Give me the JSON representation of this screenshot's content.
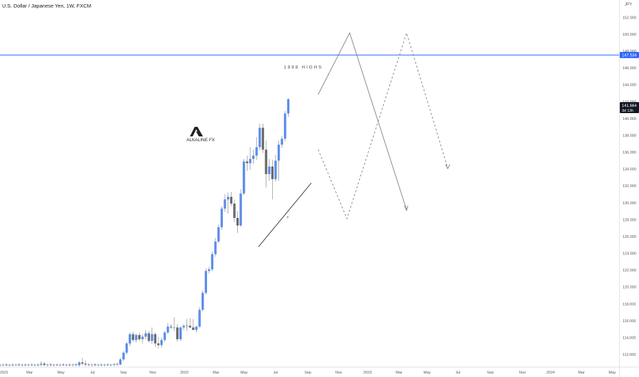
{
  "header": {
    "symbol_title": "U.S. Dollar / Japanese Yen, 1W, FXCM",
    "currency": "JPY"
  },
  "watermark": {
    "text": "ALKALINE FX"
  },
  "annotation": {
    "text": "1998 HIGHS"
  },
  "colors": {
    "up": "#5b8dec",
    "down": "#6a6a6a",
    "wick": "#888888",
    "hline": "#2962ff",
    "projection": "#7d7d7d",
    "axis_text": "#555555"
  },
  "chart_data": {
    "type": "candlestick",
    "ylim": [
      110.6,
      154.2
    ],
    "y_ticks": [
      112,
      114,
      116,
      118,
      120,
      122,
      124,
      126,
      128,
      130,
      132,
      134,
      136,
      138,
      140,
      142,
      144,
      146,
      148,
      150,
      152,
      154
    ],
    "x_ticks": [
      "2021",
      "Mar",
      "May",
      "Jul",
      "Sep",
      "Nov",
      "2022",
      "Mar",
      "May",
      "Jul",
      "Sep",
      "Nov",
      "2023",
      "Mar",
      "May",
      "Jul",
      "Sep",
      "Nov",
      "2024",
      "Mar",
      "May"
    ],
    "price_labels": {
      "level": 147.534,
      "last": 141.664,
      "countdown": "3d 13h"
    },
    "horizontal_line": 147.534,
    "candles": [
      {
        "o": 110.75,
        "h": 110.85,
        "l": 110.55,
        "c": 110.72
      },
      {
        "o": 110.72,
        "h": 110.9,
        "l": 110.6,
        "c": 110.78
      },
      {
        "o": 110.78,
        "h": 110.95,
        "l": 110.6,
        "c": 110.7
      },
      {
        "o": 110.7,
        "h": 110.85,
        "l": 110.55,
        "c": 110.76
      },
      {
        "o": 110.76,
        "h": 110.9,
        "l": 110.6,
        "c": 110.74
      },
      {
        "o": 110.74,
        "h": 110.88,
        "l": 110.58,
        "c": 110.8
      },
      {
        "o": 110.8,
        "h": 110.95,
        "l": 110.62,
        "c": 110.72
      },
      {
        "o": 110.72,
        "h": 110.86,
        "l": 110.56,
        "c": 110.78
      },
      {
        "o": 110.78,
        "h": 110.92,
        "l": 110.6,
        "c": 110.74
      },
      {
        "o": 110.74,
        "h": 110.88,
        "l": 110.58,
        "c": 110.79
      },
      {
        "o": 110.79,
        "h": 110.94,
        "l": 110.62,
        "c": 110.73
      },
      {
        "o": 110.73,
        "h": 110.87,
        "l": 110.57,
        "c": 110.77
      },
      {
        "o": 110.77,
        "h": 110.9,
        "l": 110.6,
        "c": 110.75
      },
      {
        "o": 110.75,
        "h": 111.2,
        "l": 110.6,
        "c": 110.9
      },
      {
        "o": 110.9,
        "h": 111.1,
        "l": 110.6,
        "c": 110.75
      },
      {
        "o": 110.75,
        "h": 110.9,
        "l": 110.55,
        "c": 110.8
      },
      {
        "o": 110.8,
        "h": 110.95,
        "l": 110.6,
        "c": 110.72
      },
      {
        "o": 110.72,
        "h": 110.86,
        "l": 110.56,
        "c": 110.78
      },
      {
        "o": 110.78,
        "h": 110.92,
        "l": 110.6,
        "c": 110.74
      },
      {
        "o": 110.74,
        "h": 110.88,
        "l": 110.58,
        "c": 110.79
      },
      {
        "o": 110.79,
        "h": 110.94,
        "l": 110.62,
        "c": 110.73
      },
      {
        "o": 110.73,
        "h": 110.87,
        "l": 110.57,
        "c": 110.77
      },
      {
        "o": 110.77,
        "h": 110.9,
        "l": 110.6,
        "c": 110.75
      },
      {
        "o": 110.75,
        "h": 110.9,
        "l": 110.55,
        "c": 110.8
      },
      {
        "o": 110.8,
        "h": 110.95,
        "l": 110.6,
        "c": 110.72
      },
      {
        "o": 110.72,
        "h": 111.2,
        "l": 110.56,
        "c": 111.05
      },
      {
        "o": 111.05,
        "h": 111.6,
        "l": 110.7,
        "c": 110.9
      },
      {
        "o": 110.9,
        "h": 111.3,
        "l": 110.6,
        "c": 110.8
      },
      {
        "o": 110.8,
        "h": 110.95,
        "l": 110.6,
        "c": 110.75
      },
      {
        "o": 110.75,
        "h": 110.9,
        "l": 110.55,
        "c": 110.8
      },
      {
        "o": 110.8,
        "h": 110.95,
        "l": 110.6,
        "c": 110.72
      },
      {
        "o": 110.72,
        "h": 110.86,
        "l": 110.56,
        "c": 110.78
      },
      {
        "o": 110.78,
        "h": 110.92,
        "l": 110.6,
        "c": 110.74
      },
      {
        "o": 110.74,
        "h": 110.88,
        "l": 110.58,
        "c": 110.79
      },
      {
        "o": 110.79,
        "h": 110.94,
        "l": 110.62,
        "c": 110.73
      },
      {
        "o": 110.73,
        "h": 110.87,
        "l": 110.57,
        "c": 110.77
      },
      {
        "o": 110.77,
        "h": 110.95,
        "l": 110.6,
        "c": 110.85
      },
      {
        "o": 110.85,
        "h": 111.0,
        "l": 110.65,
        "c": 110.8
      },
      {
        "o": 110.8,
        "h": 111.6,
        "l": 110.7,
        "c": 111.4
      },
      {
        "o": 111.4,
        "h": 112.4,
        "l": 111.2,
        "c": 112.2
      },
      {
        "o": 112.2,
        "h": 113.5,
        "l": 112.0,
        "c": 113.3
      },
      {
        "o": 113.3,
        "h": 114.6,
        "l": 113.0,
        "c": 114.4
      },
      {
        "o": 114.4,
        "h": 114.7,
        "l": 113.5,
        "c": 113.7
      },
      {
        "o": 113.7,
        "h": 114.5,
        "l": 113.4,
        "c": 114.3
      },
      {
        "o": 114.3,
        "h": 114.6,
        "l": 113.6,
        "c": 113.8
      },
      {
        "o": 113.8,
        "h": 114.4,
        "l": 113.3,
        "c": 114.1
      },
      {
        "o": 114.1,
        "h": 114.9,
        "l": 113.8,
        "c": 114.5
      },
      {
        "o": 114.5,
        "h": 114.8,
        "l": 113.4,
        "c": 113.6
      },
      {
        "o": 113.6,
        "h": 115.2,
        "l": 113.2,
        "c": 114.4
      },
      {
        "o": 114.4,
        "h": 114.6,
        "l": 112.9,
        "c": 113.3
      },
      {
        "o": 113.3,
        "h": 114.1,
        "l": 112.7,
        "c": 113.1
      },
      {
        "o": 113.1,
        "h": 114.0,
        "l": 112.8,
        "c": 113.7
      },
      {
        "o": 113.7,
        "h": 114.8,
        "l": 113.5,
        "c": 114.6
      },
      {
        "o": 114.6,
        "h": 115.7,
        "l": 114.4,
        "c": 115.3
      },
      {
        "o": 115.3,
        "h": 115.6,
        "l": 115.0,
        "c": 115.2
      },
      {
        "o": 115.2,
        "h": 116.4,
        "l": 114.8,
        "c": 115.2
      },
      {
        "o": 115.2,
        "h": 115.6,
        "l": 113.5,
        "c": 113.8
      },
      {
        "o": 113.8,
        "h": 115.3,
        "l": 113.6,
        "c": 115.2
      },
      {
        "o": 115.2,
        "h": 115.6,
        "l": 114.9,
        "c": 115.4
      },
      {
        "o": 115.4,
        "h": 116.2,
        "l": 114.8,
        "c": 115.4
      },
      {
        "o": 115.4,
        "h": 116.3,
        "l": 115.1,
        "c": 115.2
      },
      {
        "o": 115.2,
        "h": 116.2,
        "l": 114.9,
        "c": 114.9
      },
      {
        "o": 114.9,
        "h": 115.4,
        "l": 114.6,
        "c": 115.3
      },
      {
        "o": 115.3,
        "h": 117.6,
        "l": 115.1,
        "c": 117.3
      },
      {
        "o": 117.3,
        "h": 119.6,
        "l": 117.1,
        "c": 119.3
      },
      {
        "o": 119.3,
        "h": 122.2,
        "l": 119.1,
        "c": 121.9
      },
      {
        "o": 121.9,
        "h": 122.4,
        "l": 121.6,
        "c": 122.1
      },
      {
        "o": 122.1,
        "h": 124.2,
        "l": 121.9,
        "c": 123.9
      },
      {
        "o": 123.9,
        "h": 125.8,
        "l": 123.6,
        "c": 125.4
      },
      {
        "o": 125.4,
        "h": 127.4,
        "l": 125.2,
        "c": 127.1
      },
      {
        "o": 127.1,
        "h": 129.6,
        "l": 126.8,
        "c": 129.3
      },
      {
        "o": 129.3,
        "h": 131.0,
        "l": 128.9,
        "c": 130.4
      },
      {
        "o": 130.4,
        "h": 131.2,
        "l": 128.7,
        "c": 130.7
      },
      {
        "o": 130.7,
        "h": 131.3,
        "l": 129.6,
        "c": 129.9
      },
      {
        "o": 129.9,
        "h": 130.4,
        "l": 127.7,
        "c": 128.2
      },
      {
        "o": 128.2,
        "h": 129.0,
        "l": 126.4,
        "c": 127.3
      },
      {
        "o": 127.3,
        "h": 131.6,
        "l": 127.1,
        "c": 131.1
      },
      {
        "o": 131.1,
        "h": 135.2,
        "l": 130.9,
        "c": 134.9
      },
      {
        "o": 134.9,
        "h": 135.6,
        "l": 133.8,
        "c": 134.7
      },
      {
        "o": 134.7,
        "h": 136.6,
        "l": 133.9,
        "c": 135.2
      },
      {
        "o": 135.2,
        "h": 136.3,
        "l": 134.6,
        "c": 135.6
      },
      {
        "o": 135.6,
        "h": 137.8,
        "l": 135.1,
        "c": 136.6
      },
      {
        "o": 136.6,
        "h": 139.4,
        "l": 136.2,
        "c": 138.9
      },
      {
        "o": 138.9,
        "h": 139.4,
        "l": 135.9,
        "c": 136.3
      },
      {
        "o": 136.3,
        "h": 137.4,
        "l": 131.8,
        "c": 133.4
      },
      {
        "o": 133.4,
        "h": 135.2,
        "l": 132.6,
        "c": 134.3
      },
      {
        "o": 134.3,
        "h": 135.1,
        "l": 130.4,
        "c": 132.8
      },
      {
        "o": 132.8,
        "h": 135.7,
        "l": 132.5,
        "c": 135.0
      },
      {
        "o": 135.0,
        "h": 137.4,
        "l": 132.6,
        "c": 136.9
      },
      {
        "o": 136.9,
        "h": 137.9,
        "l": 136.5,
        "c": 137.6
      },
      {
        "o": 137.6,
        "h": 140.9,
        "l": 137.3,
        "c": 140.6
      },
      {
        "o": 140.6,
        "h": 142.4,
        "l": 140.2,
        "c": 142.3
      }
    ]
  }
}
